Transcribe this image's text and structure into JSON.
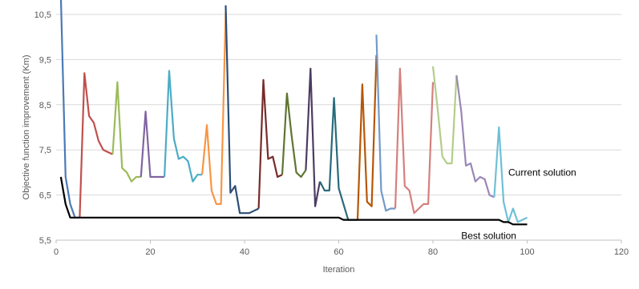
{
  "chart_data": {
    "type": "line",
    "title": "",
    "xlabel": "Iteration",
    "ylabel": "Objective function improvement  (Km)",
    "xlim": [
      0,
      120
    ],
    "ylim": [
      5.5,
      10.5
    ],
    "x_ticks": [
      0,
      20,
      40,
      60,
      80,
      100,
      120
    ],
    "y_ticks": [
      5.5,
      6.5,
      7.5,
      8.5,
      9.5,
      10.5
    ],
    "y_tick_labels": [
      "5,5",
      "6,5",
      "7,5",
      "8,5",
      "9,5",
      "10,5"
    ],
    "grid": "horizontal",
    "legend": "none",
    "annotations": [
      {
        "text": "Current solution",
        "x": 96,
        "y": 7.0
      },
      {
        "text": "Best solution",
        "x": 86,
        "y": 5.6
      }
    ],
    "best_solution": {
      "color": "#000000",
      "points": [
        [
          1,
          6.9
        ],
        [
          2,
          6.3
        ],
        [
          3,
          6.0
        ],
        [
          20,
          6.0
        ],
        [
          40,
          6.0
        ],
        [
          60,
          6.0
        ],
        [
          61,
          5.95
        ],
        [
          80,
          5.95
        ],
        [
          94,
          5.95
        ],
        [
          95,
          5.9
        ],
        [
          96,
          5.9
        ],
        [
          97,
          5.85
        ],
        [
          100,
          5.85
        ]
      ]
    },
    "current_solution_segments": [
      {
        "color": "#4a7ab5",
        "points": [
          [
            1,
            10.9
          ],
          [
            2,
            6.9
          ],
          [
            3,
            6.3
          ],
          [
            4,
            6.0
          ],
          [
            5,
            6.0
          ]
        ]
      },
      {
        "color": "#c0504d",
        "points": [
          [
            5,
            6.0
          ],
          [
            6,
            9.2
          ],
          [
            7,
            8.25
          ],
          [
            8,
            8.1
          ],
          [
            9,
            7.7
          ],
          [
            10,
            7.5
          ],
          [
            11,
            7.45
          ],
          [
            12,
            7.4
          ]
        ]
      },
      {
        "color": "#9bbb59",
        "points": [
          [
            12,
            7.4
          ],
          [
            13,
            9.0
          ],
          [
            14,
            7.1
          ],
          [
            15,
            7.0
          ],
          [
            16,
            6.8
          ],
          [
            17,
            6.9
          ],
          [
            18,
            6.9
          ]
        ]
      },
      {
        "color": "#8064a2",
        "points": [
          [
            18,
            6.9
          ],
          [
            19,
            8.35
          ],
          [
            20,
            6.9
          ],
          [
            21,
            6.9
          ],
          [
            22,
            6.9
          ],
          [
            23,
            6.9
          ]
        ]
      },
      {
        "color": "#4bacc6",
        "points": [
          [
            23,
            6.9
          ],
          [
            24,
            9.25
          ],
          [
            25,
            7.75
          ],
          [
            26,
            7.3
          ],
          [
            27,
            7.35
          ],
          [
            28,
            7.25
          ],
          [
            29,
            6.8
          ],
          [
            30,
            6.95
          ],
          [
            31,
            6.95
          ]
        ]
      },
      {
        "color": "#f79646",
        "points": [
          [
            31,
            6.95
          ],
          [
            32,
            8.05
          ],
          [
            33,
            6.6
          ],
          [
            34,
            6.3
          ],
          [
            35,
            6.3
          ],
          [
            36,
            10.55
          ]
        ]
      },
      {
        "color": "#2c4d75",
        "points": [
          [
            36,
            10.7
          ],
          [
            37,
            6.55
          ],
          [
            38,
            6.7
          ],
          [
            39,
            6.1
          ],
          [
            40,
            6.1
          ],
          [
            41,
            6.1
          ],
          [
            42,
            6.15
          ],
          [
            43,
            6.2
          ]
        ]
      },
      {
        "color": "#772c2a",
        "points": [
          [
            43,
            6.2
          ],
          [
            44,
            9.05
          ],
          [
            45,
            7.3
          ],
          [
            46,
            7.35
          ],
          [
            47,
            6.9
          ],
          [
            48,
            6.95
          ]
        ]
      },
      {
        "color": "#5f7530",
        "points": [
          [
            48,
            6.95
          ],
          [
            49,
            8.75
          ],
          [
            50,
            7.8
          ],
          [
            51,
            7.0
          ],
          [
            52,
            6.9
          ],
          [
            53,
            7.05
          ]
        ]
      },
      {
        "color": "#4d3b62",
        "points": [
          [
            53,
            7.05
          ],
          [
            54,
            9.3
          ],
          [
            55,
            6.25
          ],
          [
            56,
            6.8
          ]
        ]
      },
      {
        "color": "#276a7c",
        "points": [
          [
            56,
            6.8
          ],
          [
            57,
            6.6
          ],
          [
            58,
            6.6
          ],
          [
            59,
            8.65
          ],
          [
            60,
            6.65
          ],
          [
            61,
            6.3
          ],
          [
            62,
            5.95
          ],
          [
            63,
            5.95
          ],
          [
            64,
            5.95
          ]
        ]
      },
      {
        "color": "#b65708",
        "points": [
          [
            64,
            5.95
          ],
          [
            65,
            8.95
          ],
          [
            66,
            6.35
          ],
          [
            67,
            6.25
          ],
          [
            68,
            9.6
          ]
        ]
      },
      {
        "color": "#729aca",
        "points": [
          [
            68,
            10.05
          ],
          [
            69,
            6.6
          ],
          [
            70,
            6.15
          ],
          [
            71,
            6.2
          ],
          [
            72,
            6.2
          ]
        ]
      },
      {
        "color": "#d4807e",
        "points": [
          [
            72,
            6.2
          ],
          [
            73,
            9.3
          ],
          [
            74,
            6.7
          ],
          [
            75,
            6.6
          ],
          [
            76,
            6.1
          ],
          [
            77,
            6.2
          ],
          [
            78,
            6.3
          ],
          [
            79,
            6.3
          ],
          [
            80,
            9.0
          ]
        ]
      },
      {
        "color": "#b3cd8a",
        "points": [
          [
            80,
            9.35
          ],
          [
            81,
            8.4
          ],
          [
            82,
            7.35
          ],
          [
            83,
            7.2
          ],
          [
            84,
            7.2
          ],
          [
            85,
            9.15
          ]
        ]
      },
      {
        "color": "#9a87b7",
        "points": [
          [
            85,
            9.15
          ],
          [
            86,
            8.35
          ],
          [
            87,
            7.15
          ],
          [
            88,
            7.2
          ],
          [
            89,
            6.8
          ],
          [
            90,
            6.9
          ],
          [
            91,
            6.85
          ],
          [
            92,
            6.5
          ],
          [
            93,
            6.45
          ]
        ]
      },
      {
        "color": "#6fc0d6",
        "points": [
          [
            93,
            6.45
          ],
          [
            94,
            8.0
          ],
          [
            95,
            6.35
          ],
          [
            96,
            5.9
          ],
          [
            97,
            6.2
          ],
          [
            98,
            5.9
          ],
          [
            99,
            5.95
          ],
          [
            100,
            6.0
          ]
        ]
      }
    ]
  }
}
